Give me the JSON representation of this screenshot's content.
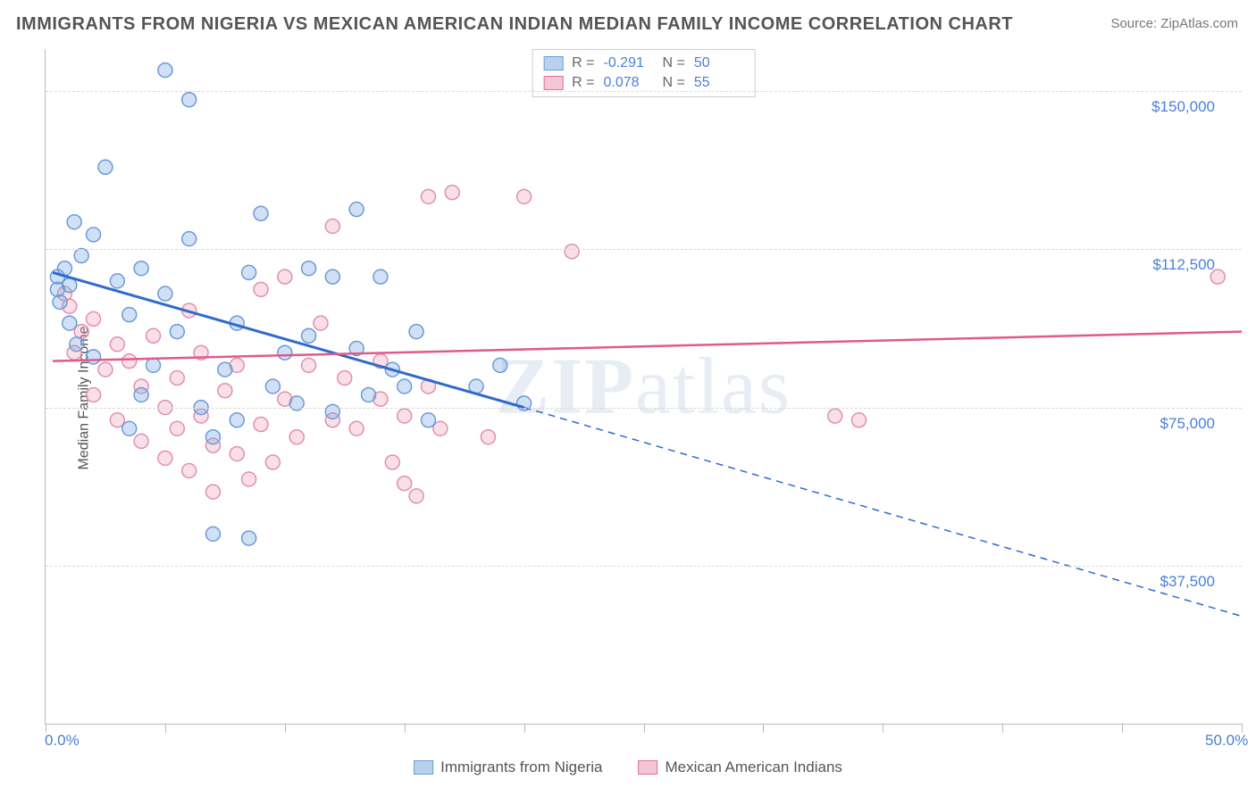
{
  "title": "IMMIGRANTS FROM NIGERIA VS MEXICAN AMERICAN INDIAN MEDIAN FAMILY INCOME CORRELATION CHART",
  "source_label": "Source: ZipAtlas.com",
  "watermark_zip": "ZIP",
  "watermark_atlas": "atlas",
  "ylabel": "Median Family Income",
  "chart": {
    "type": "scatter",
    "xlim": [
      0,
      50
    ],
    "ylim": [
      0,
      160000
    ],
    "x_tick_positions": [
      0,
      5,
      10,
      15,
      20,
      25,
      30,
      35,
      40,
      45,
      50
    ],
    "x_axis_labels": [
      {
        "v": 0,
        "t": "0.0%"
      },
      {
        "v": 50,
        "t": "50.0%"
      }
    ],
    "y_gridlines": [
      37500,
      75000,
      112500,
      150000
    ],
    "y_axis_labels": [
      {
        "v": 37500,
        "t": "$37,500"
      },
      {
        "v": 75000,
        "t": "$75,000"
      },
      {
        "v": 112500,
        "t": "$112,500"
      },
      {
        "v": 150000,
        "t": "$150,000"
      }
    ],
    "background_color": "#ffffff",
    "grid_color": "#d8d8d8",
    "axis_color": "#bbbbbb",
    "marker_radius": 8,
    "marker_stroke_width": 1.5,
    "series": [
      {
        "name": "Immigrants from Nigeria",
        "fill_color": "rgba(120,165,225,0.35)",
        "stroke_color": "#6b9bd8",
        "swatch_fill": "#b9d0ef",
        "swatch_border": "#6b9bd8",
        "R": "-0.291",
        "N": "50",
        "regression": {
          "solid": {
            "x1": 0.3,
            "y1": 107000,
            "x2": 20,
            "y2": 75000
          },
          "dashed": {
            "x1": 20,
            "y1": 75000,
            "x2": 50,
            "y2": 25500
          },
          "color": "#2f6bcc",
          "width": 3
        },
        "points": [
          [
            0.5,
            106000
          ],
          [
            0.5,
            103000
          ],
          [
            0.8,
            108000
          ],
          [
            0.6,
            100000
          ],
          [
            1.0,
            104000
          ],
          [
            1.2,
            119000
          ],
          [
            1.5,
            111000
          ],
          [
            2.0,
            116000
          ],
          [
            1.0,
            95000
          ],
          [
            1.3,
            90000
          ],
          [
            2.5,
            132000
          ],
          [
            3.0,
            105000
          ],
          [
            3.5,
            97000
          ],
          [
            2.0,
            87000
          ],
          [
            4.0,
            108000
          ],
          [
            4.5,
            85000
          ],
          [
            5.0,
            102000
          ],
          [
            5.0,
            155000
          ],
          [
            6.0,
            148000
          ],
          [
            5.5,
            93000
          ],
          [
            6.5,
            75000
          ],
          [
            7.0,
            68000
          ],
          [
            4.0,
            78000
          ],
          [
            3.5,
            70000
          ],
          [
            6.0,
            115000
          ],
          [
            7.5,
            84000
          ],
          [
            8.0,
            72000
          ],
          [
            8.5,
            107000
          ],
          [
            9.0,
            121000
          ],
          [
            8.0,
            95000
          ],
          [
            7.0,
            45000
          ],
          [
            9.5,
            80000
          ],
          [
            10.0,
            88000
          ],
          [
            10.5,
            76000
          ],
          [
            11.0,
            108000
          ],
          [
            11.0,
            92000
          ],
          [
            8.5,
            44000
          ],
          [
            12.0,
            106000
          ],
          [
            12.0,
            74000
          ],
          [
            13.0,
            122000
          ],
          [
            13.0,
            89000
          ],
          [
            13.5,
            78000
          ],
          [
            14.0,
            106000
          ],
          [
            14.5,
            84000
          ],
          [
            15.0,
            80000
          ],
          [
            15.5,
            93000
          ],
          [
            16.0,
            72000
          ],
          [
            18.0,
            80000
          ],
          [
            19.0,
            85000
          ],
          [
            20.0,
            76000
          ]
        ]
      },
      {
        "name": "Mexican American Indians",
        "fill_color": "rgba(235,140,170,0.28)",
        "stroke_color": "#e38fae",
        "swatch_fill": "#f4c6d5",
        "swatch_border": "#e36f9a",
        "R": "0.078",
        "N": "55",
        "regression": {
          "solid": {
            "x1": 0.3,
            "y1": 86000,
            "x2": 50,
            "y2": 93000
          },
          "dashed": null,
          "color": "#e05a8c",
          "width": 2.5
        },
        "points": [
          [
            0.8,
            102000
          ],
          [
            1.0,
            99000
          ],
          [
            1.5,
            93000
          ],
          [
            1.2,
            88000
          ],
          [
            2.0,
            96000
          ],
          [
            2.5,
            84000
          ],
          [
            2.0,
            78000
          ],
          [
            3.0,
            90000
          ],
          [
            3.0,
            72000
          ],
          [
            3.5,
            86000
          ],
          [
            4.0,
            67000
          ],
          [
            4.0,
            80000
          ],
          [
            4.5,
            92000
          ],
          [
            5.0,
            75000
          ],
          [
            5.0,
            63000
          ],
          [
            5.5,
            82000
          ],
          [
            5.5,
            70000
          ],
          [
            6.0,
            98000
          ],
          [
            6.0,
            60000
          ],
          [
            6.5,
            73000
          ],
          [
            6.5,
            88000
          ],
          [
            7.0,
            55000
          ],
          [
            7.0,
            66000
          ],
          [
            7.5,
            79000
          ],
          [
            8.0,
            64000
          ],
          [
            8.0,
            85000
          ],
          [
            8.5,
            58000
          ],
          [
            9.0,
            71000
          ],
          [
            9.0,
            103000
          ],
          [
            9.5,
            62000
          ],
          [
            10.0,
            77000
          ],
          [
            10.0,
            106000
          ],
          [
            10.5,
            68000
          ],
          [
            11.0,
            85000
          ],
          [
            11.5,
            95000
          ],
          [
            12.0,
            72000
          ],
          [
            12.0,
            118000
          ],
          [
            12.5,
            82000
          ],
          [
            13.0,
            70000
          ],
          [
            14.0,
            86000
          ],
          [
            14.0,
            77000
          ],
          [
            14.5,
            62000
          ],
          [
            15.0,
            73000
          ],
          [
            15.0,
            57000
          ],
          [
            15.5,
            54000
          ],
          [
            16.0,
            80000
          ],
          [
            16.0,
            125000
          ],
          [
            16.5,
            70000
          ],
          [
            17.0,
            126000
          ],
          [
            20.0,
            125000
          ],
          [
            22.0,
            112000
          ],
          [
            33.0,
            73000
          ],
          [
            34.0,
            72000
          ],
          [
            49.0,
            106000
          ],
          [
            18.5,
            68000
          ]
        ]
      }
    ],
    "legend_bottom": [
      {
        "label": "Immigrants from Nigeria",
        "series_index": 0
      },
      {
        "label": "Mexican American Indians",
        "series_index": 1
      }
    ]
  }
}
